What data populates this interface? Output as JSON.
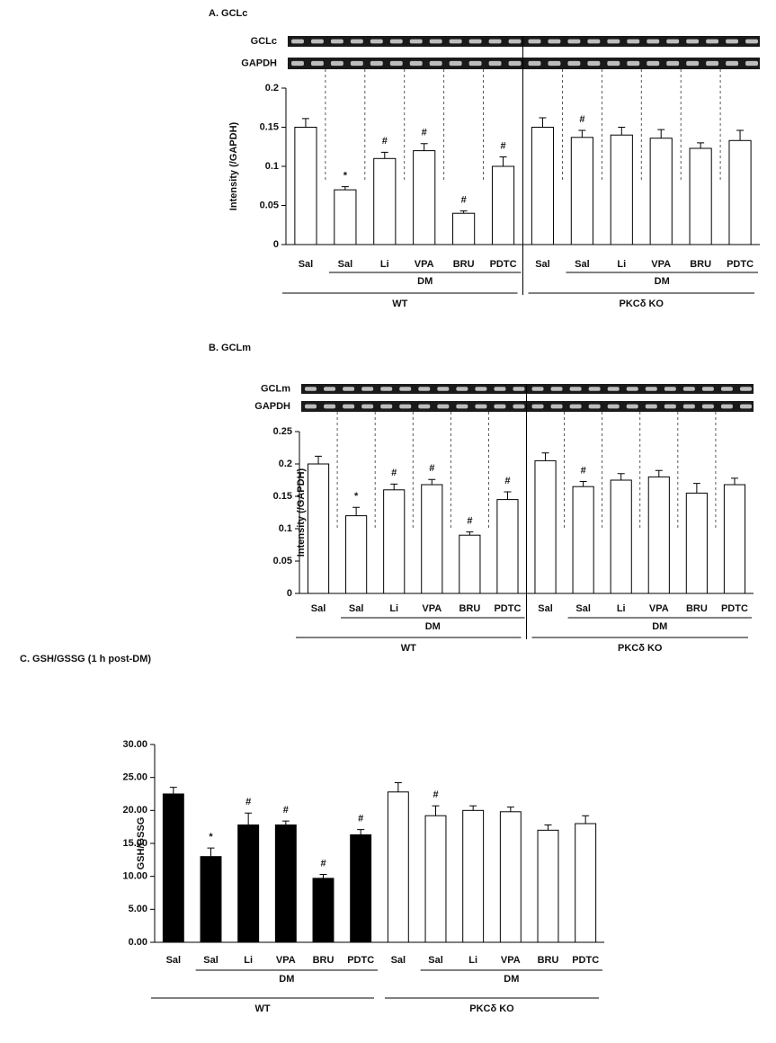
{
  "chart_data": [
    {
      "type": "bar",
      "title": "A. GCLc",
      "blots": [
        "GCLc",
        "GAPDH"
      ],
      "y_label": "Intensity (/GAPDH)",
      "categories": [
        "Sal",
        "Sal",
        "Li",
        "VPA",
        "BRU",
        "PDTC",
        "Sal",
        "Sal",
        "Li",
        "VPA",
        "BRU",
        "PDTC"
      ],
      "values": [
        0.15,
        0.07,
        0.11,
        0.12,
        0.04,
        0.1,
        0.15,
        0.137,
        0.14,
        0.136,
        0.123,
        0.133
      ],
      "errors": [
        0.011,
        0.004,
        0.008,
        0.009,
        0.003,
        0.012,
        0.012,
        0.009,
        0.01,
        0.011,
        0.007,
        0.013
      ],
      "markers": [
        null,
        "*",
        "#",
        "#",
        "#",
        "#",
        null,
        "#",
        null,
        null,
        null,
        null
      ],
      "groups": [
        {
          "label": "WT",
          "sub": "DM"
        },
        {
          "label": "PKCδ KO",
          "sub": "DM"
        }
      ],
      "bar_colors": [
        "#ffffff",
        "#ffffff",
        "#ffffff",
        "#ffffff",
        "#ffffff",
        "#ffffff",
        "#ffffff",
        "#ffffff",
        "#ffffff",
        "#ffffff",
        "#ffffff",
        "#ffffff"
      ],
      "ylim": [
        0,
        0.2
      ],
      "yticks": [
        0,
        0.05,
        0.1,
        0.15,
        0.2
      ]
    },
    {
      "type": "bar",
      "title": "B. GCLm",
      "blots": [
        "GCLm",
        "GAPDH"
      ],
      "y_label": "Intensity (/GAPDH)",
      "categories": [
        "Sal",
        "Sal",
        "Li",
        "VPA",
        "BRU",
        "PDTC",
        "Sal",
        "Sal",
        "Li",
        "VPA",
        "BRU",
        "PDTC"
      ],
      "values": [
        0.2,
        0.12,
        0.16,
        0.168,
        0.09,
        0.145,
        0.205,
        0.165,
        0.175,
        0.18,
        0.155,
        0.168
      ],
      "errors": [
        0.012,
        0.013,
        0.009,
        0.008,
        0.005,
        0.012,
        0.012,
        0.008,
        0.01,
        0.01,
        0.015,
        0.01
      ],
      "markers": [
        null,
        "*",
        "#",
        "#",
        "#",
        "#",
        null,
        "#",
        null,
        null,
        null,
        null
      ],
      "groups": [
        {
          "label": "WT",
          "sub": "DM"
        },
        {
          "label": "PKCδ KO",
          "sub": "DM"
        }
      ],
      "bar_colors": [
        "#ffffff",
        "#ffffff",
        "#ffffff",
        "#ffffff",
        "#ffffff",
        "#ffffff",
        "#ffffff",
        "#ffffff",
        "#ffffff",
        "#ffffff",
        "#ffffff",
        "#ffffff"
      ],
      "ylim": [
        0,
        0.25
      ],
      "yticks": [
        0,
        0.05,
        0.1,
        0.15,
        0.2,
        0.25
      ]
    },
    {
      "type": "bar",
      "title": "C. GSH/GSSG  (1 h post-DM)",
      "y_label": "GSH/GSSG",
      "categories": [
        "Sal",
        "Sal",
        "Li",
        "VPA",
        "BRU",
        "PDTC",
        "Sal",
        "Sal",
        "Li",
        "VPA",
        "BRU",
        "PDTC"
      ],
      "values": [
        22.5,
        13,
        17.8,
        17.8,
        9.7,
        16.3,
        22.8,
        19.2,
        20,
        19.8,
        17,
        18
      ],
      "errors": [
        1,
        1.3,
        1.8,
        0.6,
        0.6,
        0.8,
        1.4,
        1.5,
        0.7,
        0.7,
        0.8,
        1.2
      ],
      "markers": [
        null,
        "*",
        "#",
        "#",
        "#",
        "#",
        null,
        "#",
        null,
        null,
        null,
        null
      ],
      "groups": [
        {
          "label": "WT",
          "sub": "DM"
        },
        {
          "label": "PKCδ KO",
          "sub": "DM"
        }
      ],
      "bar_colors": [
        "#000000",
        "#000000",
        "#000000",
        "#000000",
        "#000000",
        "#000000",
        "#ffffff",
        "#ffffff",
        "#ffffff",
        "#ffffff",
        "#ffffff",
        "#ffffff"
      ],
      "ylim": [
        0,
        30
      ],
      "yticks": [
        {
          "value": 0,
          "label": "0.00"
        },
        {
          "value": 5,
          "label": "5.00"
        },
        {
          "value": 10,
          "label": "10.00"
        },
        {
          "value": 15,
          "label": "15.00"
        },
        {
          "value": 20,
          "label": "20.00"
        },
        {
          "value": 25,
          "label": "25.00"
        },
        {
          "value": 30,
          "label": "30.00"
        }
      ]
    }
  ]
}
